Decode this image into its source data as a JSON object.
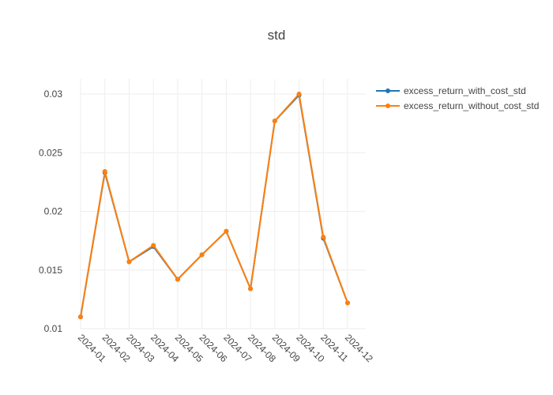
{
  "chart_data": {
    "type": "line",
    "title": "std",
    "xlabel": "",
    "ylabel": "",
    "grid": true,
    "legend_position": "top-right",
    "categories": [
      "2024-01",
      "2024-02",
      "2024-03",
      "2024-04",
      "2024-05",
      "2024-06",
      "2024-07",
      "2024-08",
      "2024-09",
      "2024-10",
      "2024-11",
      "2024-12"
    ],
    "ylim": [
      0.01,
      0.031
    ],
    "yticks": [
      0.01,
      0.015,
      0.02,
      0.025,
      0.03
    ],
    "ytick_labels": [
      "0.01",
      "0.015",
      "0.02",
      "0.025",
      "0.03"
    ],
    "series": [
      {
        "name": "excess_return_with_cost_std",
        "color": "#1f77b4",
        "values": [
          0.011,
          0.0233,
          0.0157,
          0.017,
          0.0142,
          0.0163,
          0.0183,
          0.0134,
          0.0277,
          0.0299,
          0.0177,
          0.0122
        ]
      },
      {
        "name": "excess_return_without_cost_std",
        "color": "#ff7f0e",
        "values": [
          0.011,
          0.0234,
          0.0157,
          0.0171,
          0.0142,
          0.0163,
          0.0183,
          0.0134,
          0.0277,
          0.03,
          0.0178,
          0.0122
        ]
      }
    ]
  }
}
